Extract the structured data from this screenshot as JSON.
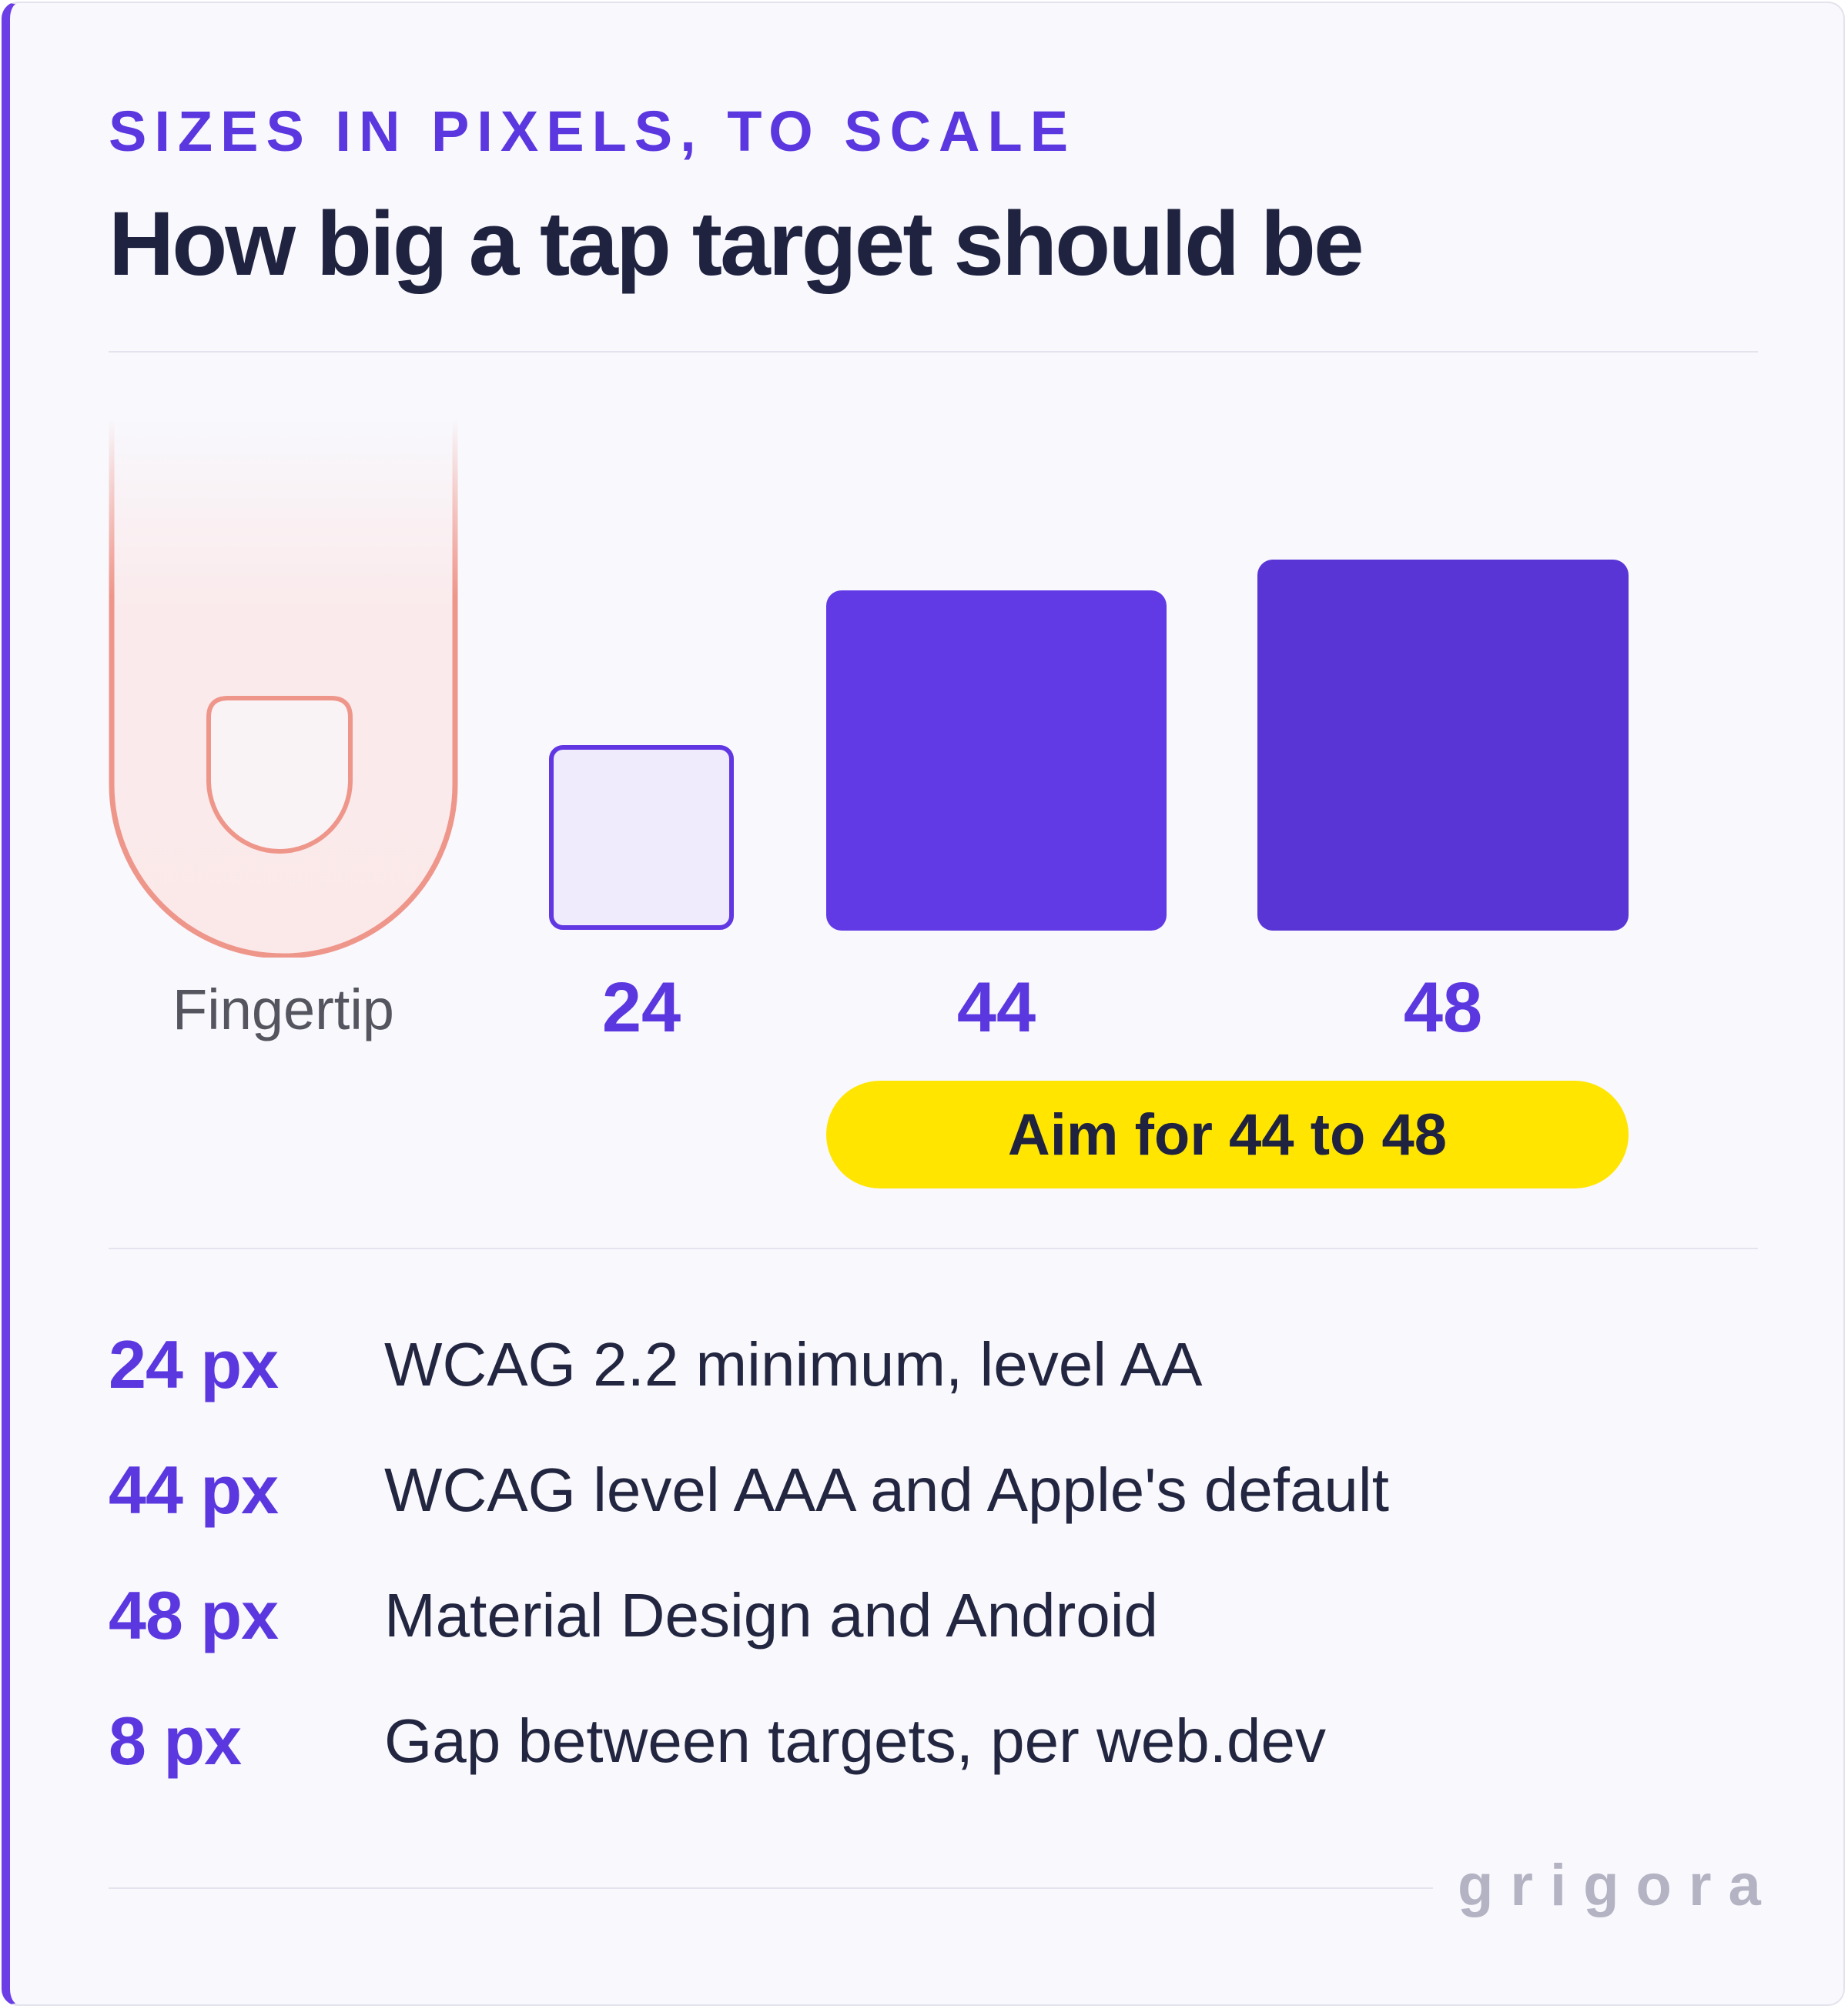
{
  "header": {
    "eyebrow": "SIZES IN PIXELS, TO SCALE",
    "title": "How big a tap target should be"
  },
  "illustration": {
    "finger_label": "Fingertip",
    "targets": [
      {
        "value": 24,
        "label": "24",
        "style": "outline"
      },
      {
        "value": 44,
        "label": "44",
        "style": "filled"
      },
      {
        "value": 48,
        "label": "48",
        "style": "filled"
      }
    ],
    "recommendation": "Aim for 44 to 48"
  },
  "specs": [
    {
      "value": "24 px",
      "text": "WCAG 2.2 minimum, level AA"
    },
    {
      "value": "44 px",
      "text": "WCAG level AAA and Apple's default"
    },
    {
      "value": "48 px",
      "text": "Material Design and Android"
    },
    {
      "value": "8 px",
      "text": "Gap between targets, per web.dev"
    }
  ],
  "brand": "grigora",
  "colors": {
    "accent": "#5b37e0",
    "target_44": "#613ae6",
    "target_48": "#5a35d6",
    "highlight": "#ffe500",
    "finger": "#ef968b",
    "text_dark": "#1f2340",
    "background": "#f8f8fd"
  }
}
